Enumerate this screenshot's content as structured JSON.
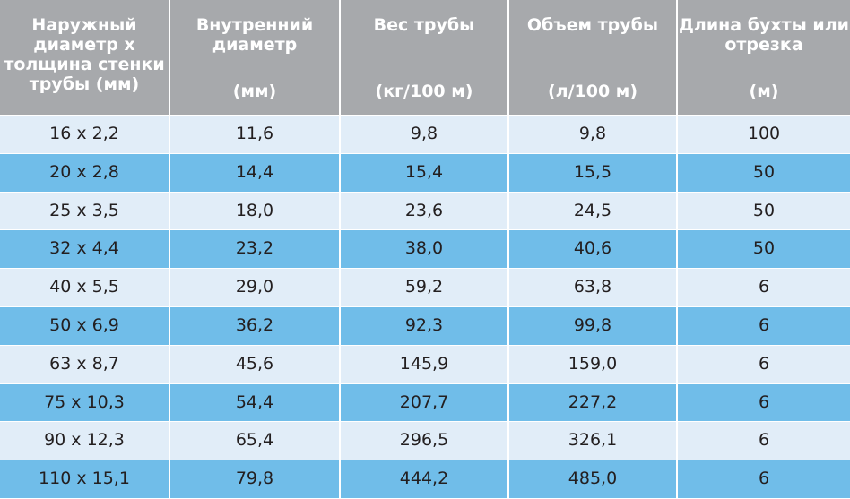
{
  "headers": [
    {
      "title": "Наружный\nдиаметр х\nтолщина стенки\nтрубы (мм)",
      "unit": ""
    },
    {
      "title": "Внутренний\nдиаметр",
      "unit": "(мм)"
    },
    {
      "title": "Вес трубы",
      "unit": "(кг/100 м)"
    },
    {
      "title": "Объем трубы",
      "unit": "(л/100 м)"
    },
    {
      "title": "Длина бухты или\nотрезка",
      "unit": "(м)"
    }
  ],
  "rows": [
    [
      "16 x 2,2",
      "11,6",
      "9,8",
      "9,8",
      "100"
    ],
    [
      "20 x 2,8",
      "14,4",
      "15,4",
      "15,5",
      "50"
    ],
    [
      "25 x 3,5",
      "18,0",
      "23,6",
      "24,5",
      "50"
    ],
    [
      "32 x 4,4",
      "23,2",
      "38,0",
      "40,6",
      "50"
    ],
    [
      "40 x 5,5",
      "29,0",
      "59,2",
      "63,8",
      "6"
    ],
    [
      "50 x 6,9",
      "36,2",
      "92,3",
      "99,8",
      "6"
    ],
    [
      "63 x 8,7",
      "45,6",
      "145,9",
      "159,0",
      "6"
    ],
    [
      "75 x 10,3",
      "54,4",
      "207,7",
      "227,2",
      "6"
    ],
    [
      "90 x 12,3",
      "65,4",
      "296,5",
      "326,1",
      "6"
    ],
    [
      "110 x 15,1",
      "79,8",
      "444,2",
      "485,0",
      "6"
    ]
  ],
  "colors": {
    "header_bg": "#a7a9ac",
    "row_light": "#e1edf8",
    "row_dark": "#70bde9",
    "text": "#231f20"
  }
}
